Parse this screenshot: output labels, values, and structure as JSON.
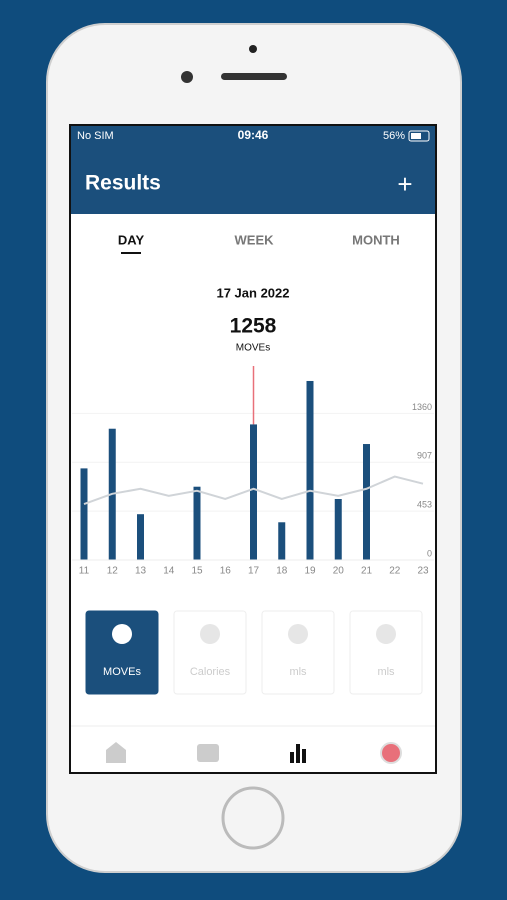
{
  "status_bar": {
    "carrier": "No SIM",
    "time": "09:46",
    "battery": "56%"
  },
  "header": {
    "title": "Results",
    "action": "+"
  },
  "tabs": [
    "DAY",
    "WEEK",
    "MONTH"
  ],
  "summary": {
    "date": "17 Jan 2022",
    "value": "1258",
    "unit": "MOVEs"
  },
  "chart": {
    "type": "bar",
    "categories": [
      "11",
      "12",
      "13",
      "14",
      "15",
      "16",
      "17",
      "18",
      "19",
      "20",
      "21",
      "22",
      "23"
    ],
    "values": [
      850,
      1218,
      425,
      0,
      680,
      0,
      1258,
      350,
      1661,
      566,
      1076,
      0,
      0
    ],
    "trend": [
      519,
      614,
      661,
      595,
      642,
      566,
      661,
      566,
      642,
      595,
      661,
      774,
      708
    ],
    "color": "#1b4f7c",
    "trend_color": "#d0d4d8",
    "highlight_color": "#e8707a",
    "selected_index": 6,
    "ylim": [
      0,
      1800
    ],
    "yticks": [
      0,
      453,
      907,
      1360
    ]
  },
  "tiles": [
    "MOVEs",
    "Calories",
    "mls",
    "mls"
  ]
}
